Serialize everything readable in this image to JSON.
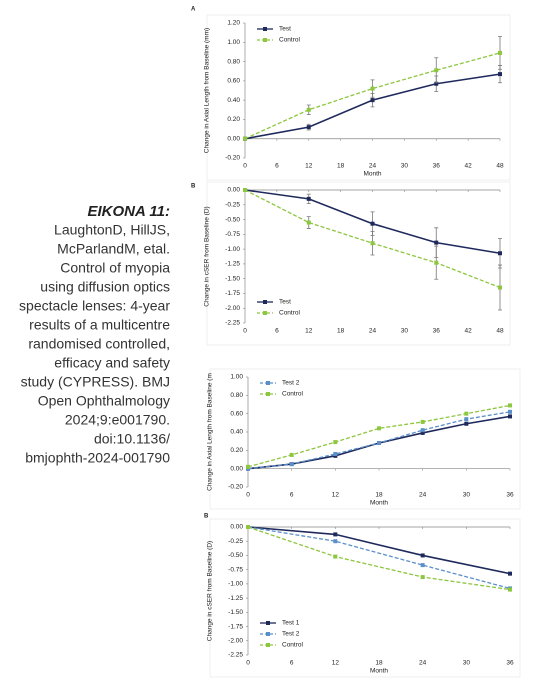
{
  "caption": {
    "title": "EIKONA 11:",
    "lines": [
      "LaughtonD, HillJS,",
      "McParlandM, etal.",
      "Control of myopia",
      "using diffusion optics",
      "spectacle lenses: 4-year",
      "results of a multicentre",
      "randomised controlled,",
      "efficacy and safety",
      "study (CYPRESS). BMJ",
      "Open Ophthalmology",
      "2024;9:e001790.",
      "doi:10.1136/",
      "bmjophth-2024-001790"
    ]
  },
  "chart_data": [
    {
      "type": "line",
      "panel": "A",
      "ylabel": "Change in Axial Length from Baseline (mm)",
      "xlabel": "Month",
      "x": [
        0,
        12,
        24,
        36,
        48
      ],
      "xlim": [
        0,
        48
      ],
      "xticks": [
        0,
        6,
        12,
        18,
        24,
        30,
        36,
        42,
        48
      ],
      "ylim": [
        -0.2,
        1.2
      ],
      "yticks": [
        {
          "value": -0.2,
          "label": "-0.20"
        },
        {
          "value": 0,
          "label": "0.00"
        },
        {
          "value": 0.2,
          "label": "0.20"
        },
        {
          "value": 0.4,
          "label": "0.40"
        },
        {
          "value": 0.6,
          "label": "0.60"
        },
        {
          "value": 0.8,
          "label": "0.80"
        },
        {
          "value": 1.0,
          "label": "1.00"
        },
        {
          "value": 1.2,
          "label": "1.20"
        }
      ],
      "legend": "upper left",
      "series": [
        {
          "name": "Test",
          "color": "#1f2a5c",
          "dashed": false,
          "marker": "square",
          "values": [
            0,
            0.12,
            0.4,
            0.57,
            0.67
          ],
          "errors": [
            0,
            0.03,
            0.07,
            0.08,
            0.09
          ]
        },
        {
          "name": "Control",
          "color": "#8dc63f",
          "dashed": true,
          "marker": "square",
          "values": [
            0,
            0.3,
            0.52,
            0.71,
            0.89
          ],
          "errors": [
            0,
            0.05,
            0.09,
            0.13,
            0.17
          ]
        }
      ]
    },
    {
      "type": "line",
      "panel": "B",
      "ylabel": "Change in cSER from Baseline (D)",
      "x": [
        0,
        12,
        24,
        36,
        48
      ],
      "xlim": [
        0,
        48
      ],
      "xticks": [
        0,
        6,
        12,
        18,
        24,
        30,
        36,
        42,
        48
      ],
      "ylim": [
        -2.25,
        0
      ],
      "yticks": [
        {
          "value": 0,
          "label": "0.00"
        },
        {
          "value": -0.25,
          "label": "-0.25"
        },
        {
          "value": -0.5,
          "label": "-0.50"
        },
        {
          "value": -0.75,
          "label": "-0.75"
        },
        {
          "value": -1.0,
          "label": "-1.00"
        },
        {
          "value": -1.25,
          "label": "-1.25"
        },
        {
          "value": -1.5,
          "label": "-1.50"
        },
        {
          "value": -1.75,
          "label": "-1.75"
        },
        {
          "value": -2.0,
          "label": "-2.00"
        },
        {
          "value": -2.25,
          "label": "-2.25"
        }
      ],
      "legend": "lower left",
      "series": [
        {
          "name": "Test",
          "color": "#1f2a5c",
          "dashed": false,
          "marker": "square",
          "values": [
            0,
            -0.15,
            -0.57,
            -0.89,
            -1.07
          ],
          "errors": [
            0,
            0.08,
            0.2,
            0.25,
            0.25
          ]
        },
        {
          "name": "Control",
          "color": "#8dc63f",
          "dashed": true,
          "marker": "square",
          "values": [
            0,
            -0.55,
            -0.9,
            -1.23,
            -1.65
          ],
          "errors": [
            0,
            0.1,
            0.2,
            0.28,
            0.38
          ]
        }
      ]
    },
    {
      "type": "line",
      "ylabel": "Change in Axial Length from Baseline (m",
      "xlabel": "Month",
      "x": [
        0,
        6,
        12,
        18,
        24,
        30,
        36
      ],
      "xlim": [
        0,
        36
      ],
      "xticks": [
        0,
        6,
        12,
        18,
        24,
        30,
        36
      ],
      "ylim": [
        -0.2,
        1.0
      ],
      "yticks": [
        {
          "value": -0.2,
          "label": "-0.20"
        },
        {
          "value": 0,
          "label": "0.00"
        },
        {
          "value": 0.2,
          "label": "0.20"
        },
        {
          "value": 0.4,
          "label": "0.40"
        },
        {
          "value": 0.6,
          "label": "0.60"
        },
        {
          "value": 0.8,
          "label": "0.80"
        },
        {
          "value": 1.0,
          "label": "1.00"
        }
      ],
      "legend": "upper left",
      "series": [
        {
          "color": "#1f2a5c",
          "dashed": false,
          "marker": "square",
          "values": [
            0,
            0.05,
            0.14,
            0.28,
            0.39,
            0.49,
            0.57
          ]
        },
        {
          "name": "Test 2",
          "color": "#5b8fc9",
          "dashed": true,
          "marker": "square",
          "values": [
            0,
            0.05,
            0.16,
            0.28,
            0.42,
            0.54,
            0.62
          ]
        },
        {
          "name": "Control",
          "color": "#8dc63f",
          "dashed": true,
          "marker": "square",
          "values": [
            0.02,
            0.15,
            0.29,
            0.44,
            0.51,
            0.6,
            0.69
          ]
        }
      ]
    },
    {
      "type": "line",
      "panel": "B",
      "ylabel": "Change in cSER from Baseline (D)",
      "xlabel": "Month",
      "x": [
        0,
        12,
        24,
        36
      ],
      "xlim": [
        0,
        36
      ],
      "xticks": [
        0,
        6,
        12,
        18,
        24,
        30,
        36
      ],
      "ylim": [
        -2.25,
        0
      ],
      "yticks": [
        {
          "value": 0,
          "label": "0.00"
        },
        {
          "value": -0.25,
          "label": "-0.25"
        },
        {
          "value": -0.5,
          "label": "-0.50"
        },
        {
          "value": -0.75,
          "label": "-0.75"
        },
        {
          "value": -1.0,
          "label": "-1.00"
        },
        {
          "value": -1.25,
          "label": "-1.25"
        },
        {
          "value": -1.5,
          "label": "-1.50"
        },
        {
          "value": -1.75,
          "label": "-1.75"
        },
        {
          "value": -2.0,
          "label": "-2.00"
        },
        {
          "value": -2.25,
          "label": "-2.25"
        }
      ],
      "legend": "lower left",
      "series": [
        {
          "name": "Test 1",
          "color": "#1f2a5c",
          "dashed": false,
          "marker": "square",
          "values": [
            0,
            -0.13,
            -0.5,
            -0.82
          ]
        },
        {
          "name": "Test 2",
          "color": "#5b8fc9",
          "dashed": true,
          "marker": "square",
          "values": [
            0,
            -0.25,
            -0.67,
            -1.08
          ]
        },
        {
          "name": "Control",
          "color": "#8dc63f",
          "dashed": true,
          "marker": "square",
          "values": [
            0,
            -0.52,
            -0.88,
            -1.1
          ]
        }
      ]
    }
  ]
}
